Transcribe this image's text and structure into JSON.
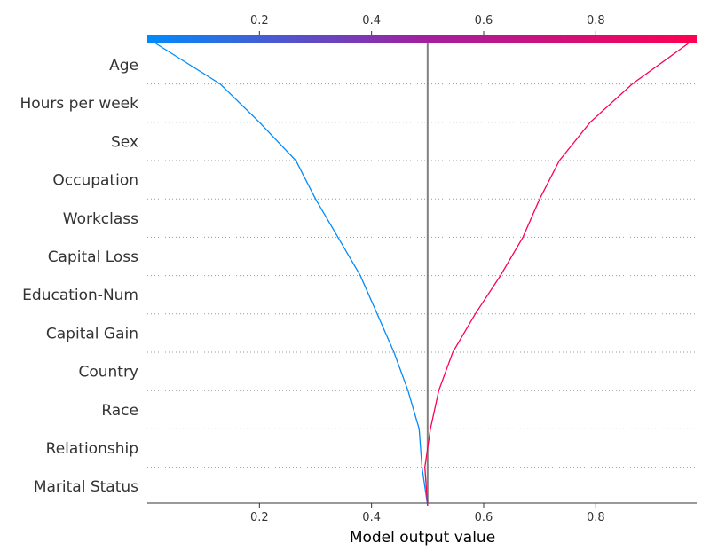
{
  "chart_data": {
    "type": "line",
    "subtype": "shap-decision-plot",
    "xlabel": "Model output value",
    "xlim": [
      0.0,
      0.98
    ],
    "x_ticks": [
      "0.2",
      "0.4",
      "0.6",
      "0.8"
    ],
    "x_tick_values": [
      0.2,
      0.4,
      0.6,
      0.8
    ],
    "base_value": 0.5,
    "features_top_to_bottom": [
      "Age",
      "Hours per week",
      "Sex",
      "Occupation",
      "Workclass",
      "Capital Loss",
      "Education-Num",
      "Capital Gain",
      "Country",
      "Race",
      "Relationship",
      "Marital Status"
    ],
    "colorbar": {
      "low_color": "#008bfb",
      "mid_color": "#a020a0",
      "high_color": "#ff0052"
    },
    "grid": "dotted-horizontal",
    "series": [
      {
        "color": "#008bfb",
        "values_top_to_bottom": [
          0.015,
          0.13,
          0.2,
          0.265,
          0.3,
          0.34,
          0.38,
          0.41,
          0.44,
          0.465,
          0.485,
          0.49,
          0.5,
          0.5
        ]
      },
      {
        "color": "#ff0052",
        "values_top_to_bottom": [
          0.965,
          0.865,
          0.79,
          0.735,
          0.7,
          0.67,
          0.63,
          0.585,
          0.545,
          0.52,
          0.505,
          0.495,
          0.5,
          0.5
        ]
      }
    ]
  }
}
